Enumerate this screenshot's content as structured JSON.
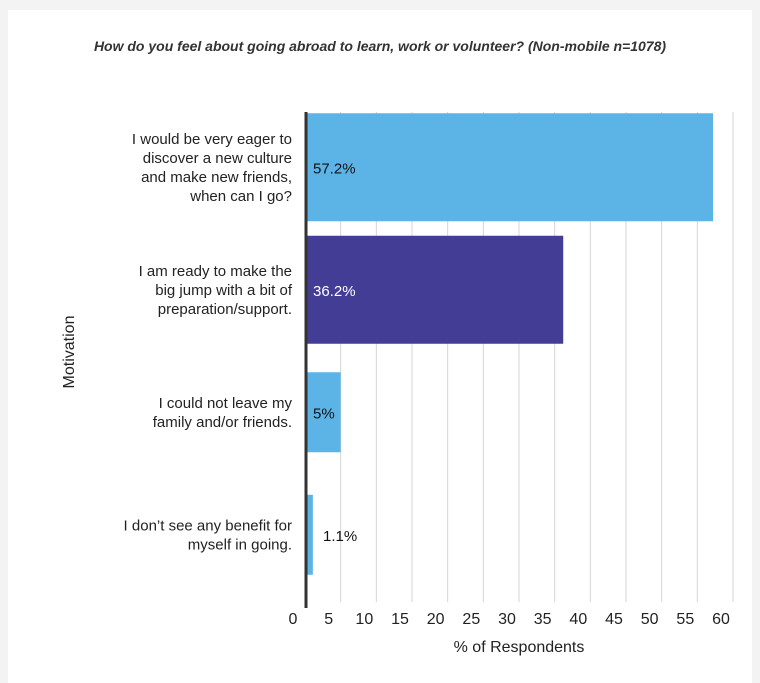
{
  "chart_data": {
    "type": "bar",
    "orientation": "horizontal",
    "title": "How do you feel about going abroad to learn, work or volunteer? (Non-mobile n=1078)",
    "xlabel": "% of Respondents",
    "ylabel": "Motivation",
    "xlim": [
      0,
      60
    ],
    "xticks": [
      "0",
      "5",
      "10",
      "15",
      "20",
      "25",
      "30",
      "35",
      "40",
      "45",
      "50",
      "55",
      "60"
    ],
    "grid": true,
    "categories": [
      [
        "I would be very eager to",
        "discover a new culture",
        "and make new friends,",
        "when can I go?"
      ],
      [
        "I am ready to make the",
        "big jump with a bit of",
        "preparation/support."
      ],
      [
        "I could not leave my",
        "family and/or friends."
      ],
      [
        "I don’t see any benefit for",
        "myself in going."
      ]
    ],
    "values": [
      57.2,
      36.2,
      5,
      1.1
    ],
    "data_labels": [
      "57.2%",
      "36.2%",
      "5%",
      "1.1%"
    ],
    "colors": [
      "#5bb4e5",
      "#443d96",
      "#5bb4e5",
      "#5bb4e5"
    ],
    "label_colors": [
      "#111111",
      "#ffffff",
      "#111111",
      "#111111"
    ]
  }
}
